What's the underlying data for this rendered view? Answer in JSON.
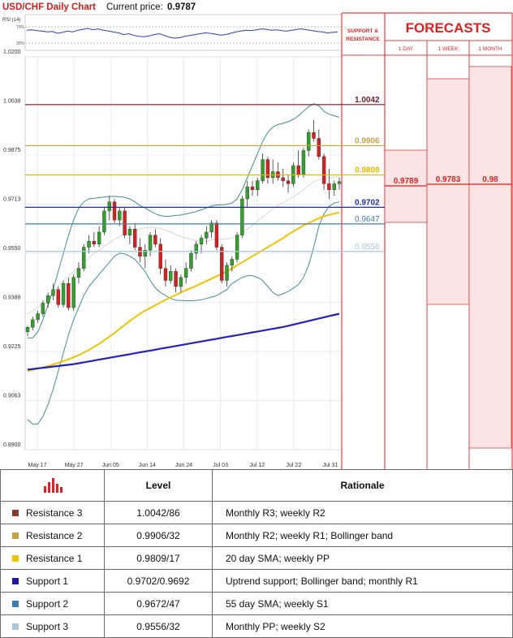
{
  "header": {
    "title": "USD/CHF Daily Chart",
    "price_label": "Current price:",
    "price_value": "0.9787"
  },
  "rsi": {
    "label": "RSI (14)",
    "level_70": "70%",
    "level_30": "30%"
  },
  "side": {
    "sr_title_line1": "SUPPORT &",
    "sr_title_line2": "RESISTANCE",
    "forecast_title": "FORECASTS",
    "cols": [
      "1 DAY",
      "1 WEEK",
      "1 MONTH"
    ],
    "forecast_values": [
      "0.9789",
      "0.9783",
      "0.98"
    ],
    "sr_levels": [
      {
        "label": "1.0042",
        "value": 1.0042,
        "color": "#6b1e2a"
      },
      {
        "label": "0.9906",
        "value": 0.9906,
        "color": "#c8a24a"
      },
      {
        "label": "0.9809",
        "value": 0.9809,
        "color": "#e6b800"
      },
      {
        "label": "0.9702",
        "value": 0.9702,
        "color": "#1f2ea8"
      },
      {
        "label": "0.9647",
        "value": 0.9647,
        "color": "#3f7fb0"
      },
      {
        "label": "0.9556",
        "value": 0.9556,
        "color": "#a7c8da"
      }
    ]
  },
  "chart_data": {
    "type": "line",
    "ylim": [
      0.89,
      1.02
    ],
    "y_ticks": [
      "1.0200",
      "1.0038",
      "0.9875",
      "0.9713",
      "0.9550",
      "0.9388",
      "0.9225",
      "0.9063",
      "0.8900"
    ],
    "x_ticks": [
      "May 17",
      "May 27",
      "Jun 05",
      "Jun 14",
      "Jun 24",
      "Jul 03",
      "Jul 12",
      "Jul 22",
      "Jul 31"
    ],
    "candles": [
      [
        0.929,
        0.931,
        0.9275,
        0.9305
      ],
      [
        0.9305,
        0.934,
        0.9295,
        0.933
      ],
      [
        0.933,
        0.936,
        0.932,
        0.935
      ],
      [
        0.935,
        0.9395,
        0.934,
        0.9385
      ],
      [
        0.9385,
        0.942,
        0.937,
        0.941
      ],
      [
        0.941,
        0.945,
        0.9395,
        0.943
      ],
      [
        0.943,
        0.944,
        0.937,
        0.938
      ],
      [
        0.938,
        0.946,
        0.937,
        0.945
      ],
      [
        0.945,
        0.947,
        0.936,
        0.937
      ],
      [
        0.937,
        0.948,
        0.936,
        0.947
      ],
      [
        0.947,
        0.952,
        0.945,
        0.95
      ],
      [
        0.95,
        0.958,
        0.949,
        0.957
      ],
      [
        0.957,
        0.961,
        0.955,
        0.959
      ],
      [
        0.959,
        0.962,
        0.957,
        0.958
      ],
      [
        0.958,
        0.964,
        0.957,
        0.962
      ],
      [
        0.962,
        0.97,
        0.961,
        0.969
      ],
      [
        0.969,
        0.974,
        0.966,
        0.972
      ],
      [
        0.972,
        0.973,
        0.965,
        0.966
      ],
      [
        0.966,
        0.97,
        0.964,
        0.969
      ],
      [
        0.969,
        0.97,
        0.96,
        0.961
      ],
      [
        0.961,
        0.964,
        0.958,
        0.963
      ],
      [
        0.963,
        0.965,
        0.956,
        0.957
      ],
      [
        0.957,
        0.96,
        0.952,
        0.954
      ],
      [
        0.954,
        0.958,
        0.95,
        0.956
      ],
      [
        0.956,
        0.962,
        0.954,
        0.961
      ],
      [
        0.961,
        0.963,
        0.957,
        0.958
      ],
      [
        0.958,
        0.96,
        0.948,
        0.95
      ],
      [
        0.95,
        0.953,
        0.944,
        0.946
      ],
      [
        0.946,
        0.951,
        0.945,
        0.949
      ],
      [
        0.949,
        0.95,
        0.942,
        0.944
      ],
      [
        0.944,
        0.948,
        0.942,
        0.947
      ],
      [
        0.947,
        0.952,
        0.945,
        0.95
      ],
      [
        0.95,
        0.956,
        0.949,
        0.955
      ],
      [
        0.955,
        0.959,
        0.953,
        0.958
      ],
      [
        0.958,
        0.961,
        0.955,
        0.96
      ],
      [
        0.96,
        0.964,
        0.958,
        0.962
      ],
      [
        0.962,
        0.966,
        0.96,
        0.965
      ],
      [
        0.965,
        0.966,
        0.956,
        0.957
      ],
      [
        0.957,
        0.958,
        0.945,
        0.946
      ],
      [
        0.946,
        0.952,
        0.944,
        0.951
      ],
      [
        0.951,
        0.954,
        0.949,
        0.953
      ],
      [
        0.953,
        0.962,
        0.952,
        0.961
      ],
      [
        0.961,
        0.974,
        0.96,
        0.973
      ],
      [
        0.973,
        0.979,
        0.97,
        0.977
      ],
      [
        0.977,
        0.979,
        0.974,
        0.976
      ],
      [
        0.976,
        0.98,
        0.974,
        0.979
      ],
      [
        0.979,
        0.988,
        0.978,
        0.986
      ],
      [
        0.986,
        0.987,
        0.978,
        0.98
      ],
      [
        0.98,
        0.986,
        0.978,
        0.982
      ],
      [
        0.982,
        0.985,
        0.979,
        0.98
      ],
      [
        0.98,
        0.983,
        0.977,
        0.979
      ],
      [
        0.979,
        0.981,
        0.975,
        0.978
      ],
      [
        0.978,
        0.985,
        0.977,
        0.984
      ],
      [
        0.984,
        0.989,
        0.98,
        0.981
      ],
      [
        0.981,
        0.99,
        0.98,
        0.989
      ],
      [
        0.989,
        0.996,
        0.987,
        0.995
      ],
      [
        0.995,
        0.999,
        0.992,
        0.993
      ],
      [
        0.993,
        0.996,
        0.986,
        0.987
      ],
      [
        0.987,
        0.988,
        0.976,
        0.978
      ],
      [
        0.978,
        0.983,
        0.973,
        0.976
      ],
      [
        0.976,
        0.979,
        0.974,
        0.978
      ],
      [
        0.978,
        0.98,
        0.976,
        0.9787
      ]
    ],
    "sma20": [
      0.935,
      0.936,
      0.937,
      0.9385,
      0.94,
      0.942,
      0.944,
      0.946,
      0.9475,
      0.949,
      0.9505,
      0.952,
      0.9535,
      0.955,
      0.956,
      0.9572,
      0.9585,
      0.9595,
      0.9605,
      0.9612,
      0.962,
      0.9625,
      0.963,
      0.9634,
      0.9636,
      0.9635,
      0.9632,
      0.9626,
      0.962,
      0.9612,
      0.9605,
      0.96,
      0.9596,
      0.9592,
      0.959,
      0.959,
      0.9594,
      0.9596,
      0.9596,
      0.9598,
      0.96,
      0.9608,
      0.9618,
      0.963,
      0.9642,
      0.9656,
      0.967,
      0.9684,
      0.9696,
      0.9708,
      0.9718,
      0.9728,
      0.9738,
      0.9748,
      0.976,
      0.9774,
      0.9786,
      0.9794,
      0.9798,
      0.98,
      0.9802,
      0.9804
    ],
    "boll_upper": [
      0.927,
      0.927,
      0.929,
      0.933,
      0.938,
      0.943,
      0.949,
      0.955,
      0.961,
      0.966,
      0.97,
      0.972,
      0.973,
      0.9732,
      0.9734,
      0.9736,
      0.9738,
      0.9738,
      0.9737,
      0.9735,
      0.973,
      0.972,
      0.9708,
      0.97,
      0.969,
      0.968,
      0.9675,
      0.9672,
      0.9673,
      0.9675,
      0.9677,
      0.968,
      0.9684,
      0.9688,
      0.9694,
      0.97,
      0.9706,
      0.971,
      0.971,
      0.9712,
      0.9716,
      0.973,
      0.976,
      0.98,
      0.984,
      0.988,
      0.992,
      0.995,
      0.9968,
      0.9976,
      0.998,
      0.9985,
      0.9993,
      1.0005,
      1.002,
      1.0035,
      1.0045,
      1.0038,
      1.002,
      1.001,
      1.0005,
      1.0
    ],
    "boll_lower": [
      0.9,
      0.8985,
      0.8985,
      0.901,
      0.905,
      0.91,
      0.916,
      0.922,
      0.928,
      0.933,
      0.937,
      0.941,
      0.944,
      0.946,
      0.948,
      0.95,
      0.952,
      0.954,
      0.955,
      0.9548,
      0.954,
      0.953,
      0.951,
      0.949,
      0.946,
      0.9435,
      0.942,
      0.941,
      0.94,
      0.9395,
      0.9394,
      0.9393,
      0.9393,
      0.9394,
      0.9396,
      0.94,
      0.9405,
      0.941,
      0.942,
      0.943,
      0.945,
      0.946,
      0.947,
      0.9476,
      0.9476,
      0.947,
      0.946,
      0.944,
      0.942,
      0.941,
      0.9416,
      0.9424,
      0.9434,
      0.9446,
      0.947,
      0.951,
      0.957,
      0.964,
      0.968,
      0.9705,
      0.9716,
      0.972
    ],
    "sma55": [
      0.916,
      0.9164,
      0.9168,
      0.9172,
      0.9177,
      0.9182,
      0.9187,
      0.9193,
      0.9199,
      0.9206,
      0.9213,
      0.9221,
      0.923,
      0.924,
      0.925,
      0.9262,
      0.9274,
      0.9286,
      0.93,
      0.9313,
      0.9326,
      0.9338,
      0.935,
      0.936,
      0.9369,
      0.9378,
      0.9387,
      0.9396,
      0.9404,
      0.9412,
      0.942,
      0.9428,
      0.9435,
      0.9442,
      0.945,
      0.9458,
      0.9466,
      0.9474,
      0.9482,
      0.949,
      0.95,
      0.951,
      0.952,
      0.953,
      0.954,
      0.955,
      0.956,
      0.957,
      0.958,
      0.959,
      0.96,
      0.9612,
      0.9622,
      0.9632,
      0.9642,
      0.965,
      0.9658,
      0.9666,
      0.9672,
      0.9677,
      0.9681,
      0.9685
    ],
    "sma200": [
      0.9165,
      0.9167,
      0.9169,
      0.9171,
      0.9173,
      0.9175,
      0.9177,
      0.9179,
      0.9181,
      0.9183,
      0.9186,
      0.9189,
      0.9192,
      0.9195,
      0.9198,
      0.9201,
      0.9204,
      0.9207,
      0.921,
      0.9213,
      0.9216,
      0.9219,
      0.9222,
      0.9225,
      0.9228,
      0.9231,
      0.9234,
      0.9237,
      0.924,
      0.9243,
      0.9246,
      0.9249,
      0.9252,
      0.9255,
      0.9258,
      0.9261,
      0.9264,
      0.9267,
      0.927,
      0.9273,
      0.9276,
      0.9279,
      0.9282,
      0.9285,
      0.9288,
      0.9291,
      0.9294,
      0.9297,
      0.93,
      0.9303,
      0.9306,
      0.931,
      0.9314,
      0.9318,
      0.9322,
      0.9326,
      0.933,
      0.9334,
      0.9338,
      0.9342,
      0.9346,
      0.935
    ],
    "rsi_values": [
      62,
      63,
      61,
      60,
      58,
      59,
      55,
      57,
      60,
      58,
      62,
      64,
      66,
      63,
      65,
      62,
      60,
      58,
      56,
      52,
      54,
      50,
      48,
      47,
      49,
      52,
      54,
      50,
      46,
      44,
      45,
      48,
      50,
      52,
      54,
      56,
      55,
      53,
      51,
      52,
      55,
      58,
      60,
      62,
      61,
      63,
      65,
      64,
      62,
      63,
      61,
      60,
      62,
      64,
      65,
      63,
      61,
      59,
      58,
      56,
      57,
      58
    ]
  },
  "table": {
    "level_header": "Level",
    "rationale_header": "Rationale",
    "rows": [
      {
        "name": "Resistance 3",
        "level": "1.0042/86",
        "rationale": "Monthly R3; weekly R2",
        "color": "#8b3a3a"
      },
      {
        "name": "Resistance 2",
        "level": "0.9906/32",
        "rationale": "Monthly R2; weekly R1; Bollinger band",
        "color": "#c8a24a"
      },
      {
        "name": "Resistance 1",
        "level": "0.9809/17",
        "rationale": "20 day SMA; weekly PP",
        "color": "#f2c200"
      },
      {
        "name": "Support 1",
        "level": "0.9702/0.9692",
        "rationale": "Uptrend support; Bollinger band; monthly R1",
        "color": "#1a1aa6"
      },
      {
        "name": "Support 2",
        "level": "0.9672/47",
        "rationale": "55 day SMA; weekly S1",
        "color": "#3a7db0"
      },
      {
        "name": "Support 3",
        "level": "0.9556/32",
        "rationale": "Monthly PP; weekly S2",
        "color": "#a8c8dc"
      }
    ]
  }
}
